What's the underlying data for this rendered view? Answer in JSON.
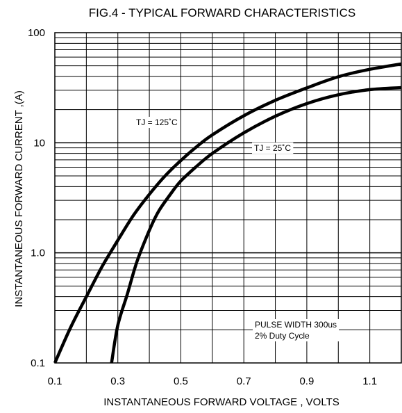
{
  "chart_data": {
    "type": "line",
    "title": "FIG.4 - TYPICAL FORWARD CHARACTERISTICS",
    "xlabel": "INSTANTANEOUS FORWARD VOLTAGE , VOLTS",
    "ylabel": "INSTANTANEOUS  FORWARD CURRENT ,(A)",
    "xlim": [
      0.1,
      1.2
    ],
    "ylim": [
      0.1,
      100
    ],
    "yscale": "log",
    "grid": true,
    "x_ticks": [
      0.1,
      0.3,
      0.5,
      0.7,
      0.9,
      1.1
    ],
    "x_tick_labels": [
      "0.1",
      "0.3",
      "0.5",
      "0.7",
      "0.9",
      "1.1"
    ],
    "y_ticks": [
      0.1,
      1,
      10,
      100
    ],
    "y_tick_labels": [
      "0.1",
      "1.0",
      "10",
      "100"
    ],
    "series": [
      {
        "name": "TJ = 125˚C",
        "points": [
          [
            0.1,
            0.1
          ],
          [
            0.15,
            0.21
          ],
          [
            0.2,
            0.4
          ],
          [
            0.25,
            0.75
          ],
          [
            0.3,
            1.3
          ],
          [
            0.35,
            2.2
          ],
          [
            0.4,
            3.4
          ],
          [
            0.45,
            5.0
          ],
          [
            0.5,
            6.9
          ],
          [
            0.55,
            9.2
          ],
          [
            0.6,
            11.8
          ],
          [
            0.7,
            17.6
          ],
          [
            0.8,
            24.3
          ],
          [
            0.9,
            31.5
          ],
          [
            1.0,
            39.8
          ],
          [
            1.1,
            46.5
          ],
          [
            1.2,
            52.0
          ]
        ]
      },
      {
        "name": "TJ = 25˚C",
        "points": [
          [
            0.28,
            0.1
          ],
          [
            0.3,
            0.22
          ],
          [
            0.33,
            0.42
          ],
          [
            0.36,
            0.82
          ],
          [
            0.4,
            1.6
          ],
          [
            0.43,
            2.4
          ],
          [
            0.47,
            3.5
          ],
          [
            0.5,
            4.5
          ],
          [
            0.55,
            6.1
          ],
          [
            0.6,
            8.0
          ],
          [
            0.7,
            12.3
          ],
          [
            0.8,
            17.4
          ],
          [
            0.9,
            22.7
          ],
          [
            1.0,
            27.3
          ],
          [
            1.1,
            30.4
          ],
          [
            1.2,
            31.7
          ]
        ]
      }
    ],
    "annotations": [
      "TJ = 125˚C",
      "TJ = 25˚C",
      "PULSE WIDTH 300us",
      "2% Duty Cycle"
    ]
  },
  "colors": {
    "line": "#000000",
    "grid": "#000000",
    "background": "#ffffff"
  }
}
